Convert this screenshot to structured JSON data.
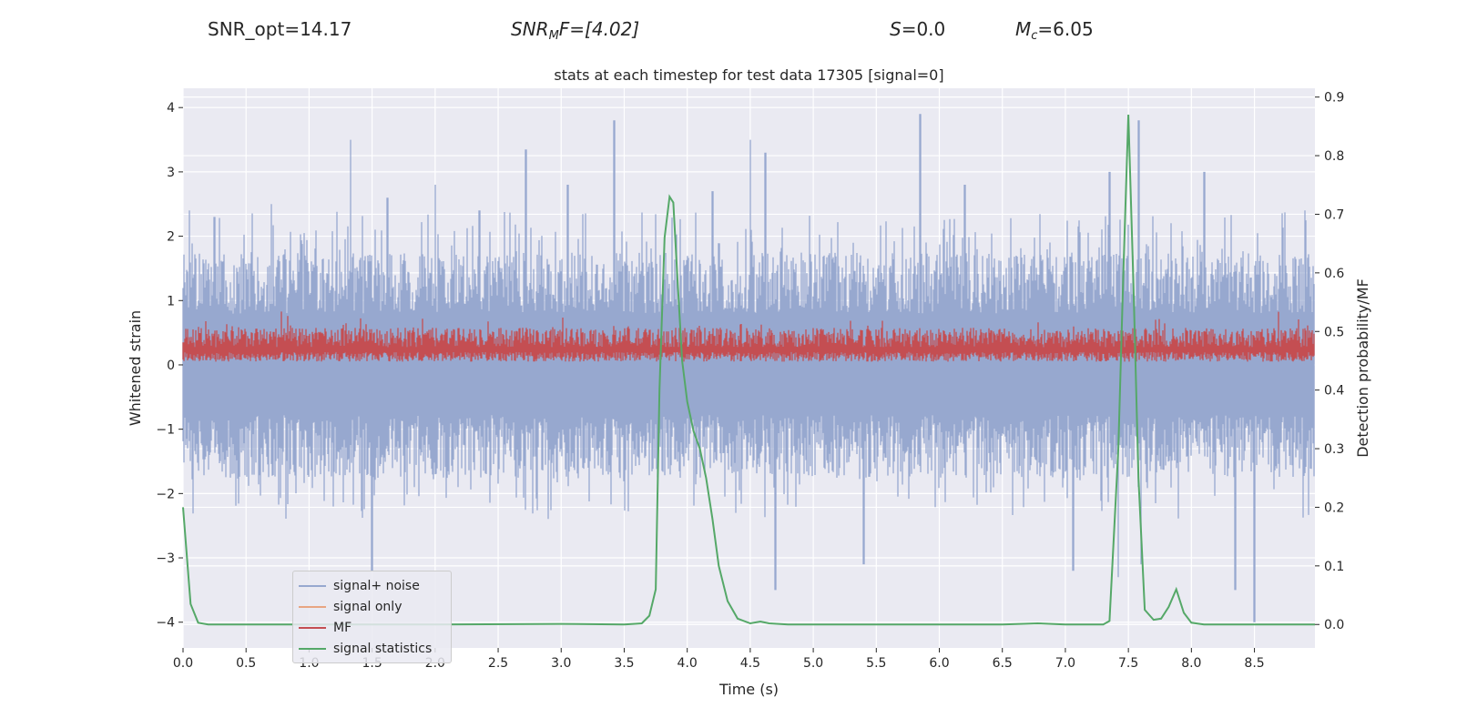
{
  "header": {
    "snr_opt_label": "SNR_opt=14.17",
    "snr_mf_symbol": "SNR",
    "snr_mf_sub": "M",
    "snr_mf_value": "F=[4.02]",
    "s_symbol": "S",
    "s_value": "=0.0",
    "mc_symbol": "M",
    "mc_sub": "c",
    "mc_value": "=6.05"
  },
  "colors": {
    "noise": "#97a8cf",
    "signal": "#e8a582",
    "mf": "#c44e52",
    "stat": "#55a868",
    "plot_bg": "#eaeaf2",
    "grid": "#ffffff"
  },
  "chart_data": {
    "type": "line",
    "title": "stats at each timestep for test data 17305 [signal=0]",
    "xlabel": "Time (s)",
    "ylabel": "Whitened strain",
    "y2label": "Detection probability/MF",
    "xlim": [
      0,
      8.98
    ],
    "ylim": [
      -4.4,
      4.3
    ],
    "y2lim": [
      -0.04,
      0.915
    ],
    "xticks": [
      0.0,
      0.5,
      1.0,
      1.5,
      2.0,
      2.5,
      3.0,
      3.5,
      4.0,
      4.5,
      5.0,
      5.5,
      6.0,
      6.5,
      7.0,
      7.5,
      8.0,
      8.5
    ],
    "xtick_labels": [
      "0.0",
      "0.5",
      "1.0",
      "1.5",
      "2.0",
      "2.5",
      "3.0",
      "3.5",
      "4.0",
      "4.5",
      "5.0",
      "5.5",
      "6.0",
      "6.5",
      "7.0",
      "7.5",
      "8.0",
      "8.5"
    ],
    "yticks": [
      -4,
      -3,
      -2,
      -1,
      0,
      1,
      2,
      3,
      4
    ],
    "ytick_labels": [
      "−4",
      "−3",
      "−2",
      "−1",
      "0",
      "1",
      "2",
      "3",
      "4"
    ],
    "y2ticks": [
      0.0,
      0.1,
      0.2,
      0.3,
      0.4,
      0.5,
      0.6,
      0.7,
      0.8,
      0.9
    ],
    "y2tick_labels": [
      "0.0",
      "0.1",
      "0.2",
      "0.3",
      "0.4",
      "0.5",
      "0.6",
      "0.7",
      "0.8",
      "0.9"
    ],
    "noise_envelope": {
      "typical_max": 1.45,
      "typical_min": -1.3,
      "spikes": [
        [
          0.05,
          2.4
        ],
        [
          0.25,
          2.3
        ],
        [
          0.7,
          2.5
        ],
        [
          1.33,
          3.5
        ],
        [
          1.5,
          -3.2
        ],
        [
          1.62,
          2.6
        ],
        [
          2.0,
          2.8
        ],
        [
          2.35,
          2.4
        ],
        [
          2.72,
          3.35
        ],
        [
          3.05,
          2.8
        ],
        [
          3.42,
          3.8
        ],
        [
          4.2,
          2.7
        ],
        [
          4.5,
          3.5
        ],
        [
          4.62,
          3.3
        ],
        [
          4.7,
          -3.5
        ],
        [
          5.4,
          -3.1
        ],
        [
          5.85,
          3.9
        ],
        [
          6.2,
          2.8
        ],
        [
          7.06,
          -3.2
        ],
        [
          7.35,
          3.0
        ],
        [
          7.42,
          -3.3
        ],
        [
          7.58,
          3.8
        ],
        [
          7.6,
          -3.1
        ],
        [
          8.1,
          3.0
        ],
        [
          8.35,
          -3.5
        ],
        [
          8.5,
          -4.0
        ],
        [
          8.9,
          2.4
        ]
      ]
    },
    "mf_band": {
      "low": 0.0,
      "high": 0.55,
      "peak_high": 0.85
    },
    "series": [
      {
        "name": "signal statistics",
        "axis": "right",
        "x": [
          0.0,
          0.06,
          0.12,
          0.2,
          0.3,
          1.0,
          2.0,
          3.0,
          3.5,
          3.64,
          3.7,
          3.75,
          3.78,
          3.82,
          3.86,
          3.89,
          3.92,
          3.96,
          4.0,
          4.05,
          4.1,
          4.15,
          4.2,
          4.25,
          4.32,
          4.4,
          4.5,
          4.58,
          4.65,
          4.8,
          5.5,
          6.0,
          6.5,
          6.78,
          7.0,
          7.3,
          7.35,
          7.42,
          7.46,
          7.5,
          7.54,
          7.58,
          7.63,
          7.7,
          7.76,
          7.82,
          7.88,
          7.94,
          8.0,
          8.1,
          8.5,
          8.98
        ],
        "y": [
          0.2,
          0.035,
          0.003,
          0.0,
          0.0,
          0.0,
          0.0,
          0.001,
          0.0,
          0.002,
          0.015,
          0.06,
          0.4,
          0.66,
          0.73,
          0.72,
          0.6,
          0.45,
          0.38,
          0.33,
          0.3,
          0.25,
          0.18,
          0.1,
          0.04,
          0.01,
          0.002,
          0.005,
          0.002,
          0.0,
          0.0,
          0.0,
          0.0,
          0.002,
          0.0,
          0.0,
          0.006,
          0.3,
          0.6,
          0.87,
          0.58,
          0.25,
          0.025,
          0.008,
          0.01,
          0.03,
          0.06,
          0.02,
          0.003,
          0.0,
          0.0,
          0.0
        ]
      }
    ],
    "legend": {
      "placement": "lower-left",
      "entries": [
        {
          "label": "signal+ noise",
          "color_key": "noise"
        },
        {
          "label": "signal only",
          "color_key": "signal"
        },
        {
          "label": "MF",
          "color_key": "mf"
        },
        {
          "label": "signal statistics",
          "color_key": "stat"
        }
      ]
    }
  }
}
